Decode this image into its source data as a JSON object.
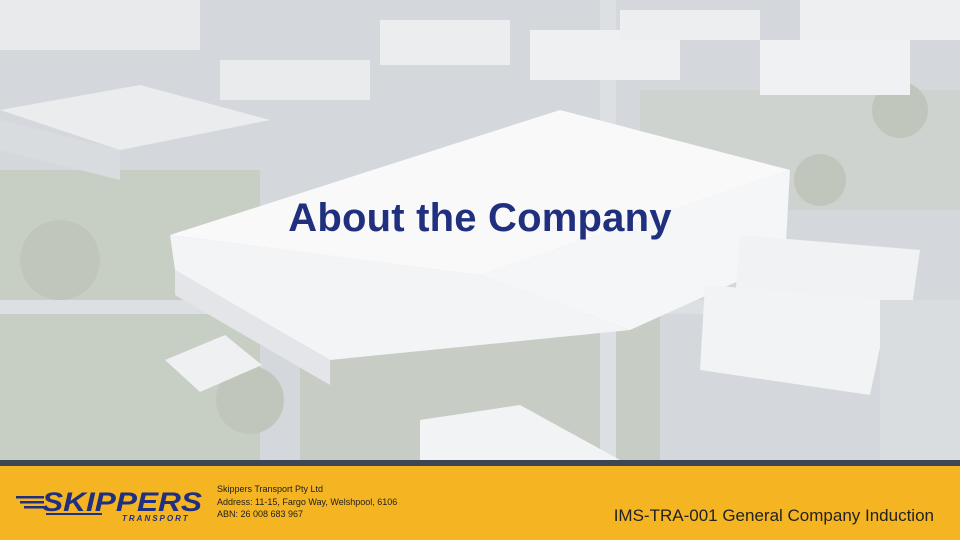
{
  "slide": {
    "title": "About the Company",
    "background_image": "aerial-industrial-warehouse-photo"
  },
  "footer": {
    "logo": {
      "wordmark": "SKIPPERS",
      "subtext": "TRANSPORT",
      "color": "#20307e"
    },
    "company_name": "Skippers Transport Pty Ltd",
    "address": "Address: 11-15, Fargo Way, Welshpool, 6106",
    "abn": "ABN: 26 008 683 967",
    "document_reference": "IMS-TRA-001 General Company Induction",
    "background_color": "#f5b523",
    "divider_color": "#3d4754"
  }
}
